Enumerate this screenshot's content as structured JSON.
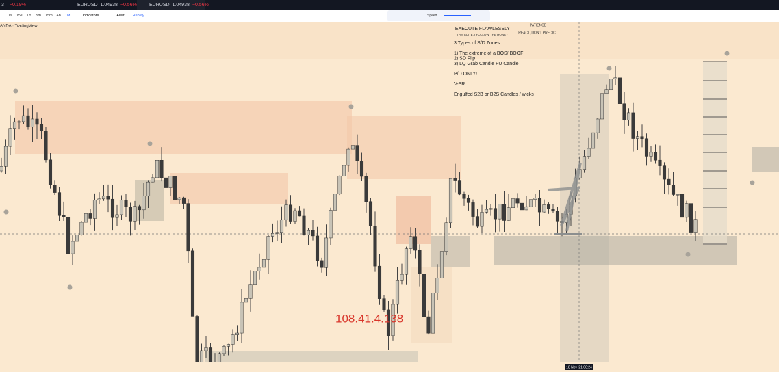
{
  "tabs": [
    {
      "symbol": "3",
      "price": "",
      "change": "−0.19%"
    },
    {
      "symbol": "EURUSD",
      "price": "1.04938",
      "change": "−0.56%"
    },
    {
      "symbol": "EURUSD",
      "price": "1.04938",
      "change": "−0.56%"
    }
  ],
  "toolbar": {
    "intervals": [
      "1s",
      "15s",
      "1m",
      "5m",
      "15m",
      "4h",
      "1M"
    ],
    "indicators": "Indicators",
    "alert": "Alert",
    "replay": "Replay"
  },
  "replay_bar": {
    "speed": "Speed"
  },
  "chart": {
    "source": "ANDA · TradingView",
    "notes": {
      "headline": "EXECUTE FLAWLESSLY",
      "tagline": "I AM ELITE. I FOLLOW THE HONEY",
      "patience": "PATIENCE",
      "react": "REACT, DON'T PREDICT",
      "zones_title": "3 Types of S/D Zones:",
      "zones": [
        "1) The extreme of a BOS/ BOOF",
        "2) SD Flip",
        "3) LQ Grab Candle FU Candle"
      ],
      "pd": "P/D ONLY!",
      "vsr": "V-SR",
      "engulfed": "Engulfed S2B or B2S Candles / wicks"
    },
    "watermark": "108.41.4.138",
    "crosshair_time": "18 Nov '21 00:24"
  }
}
